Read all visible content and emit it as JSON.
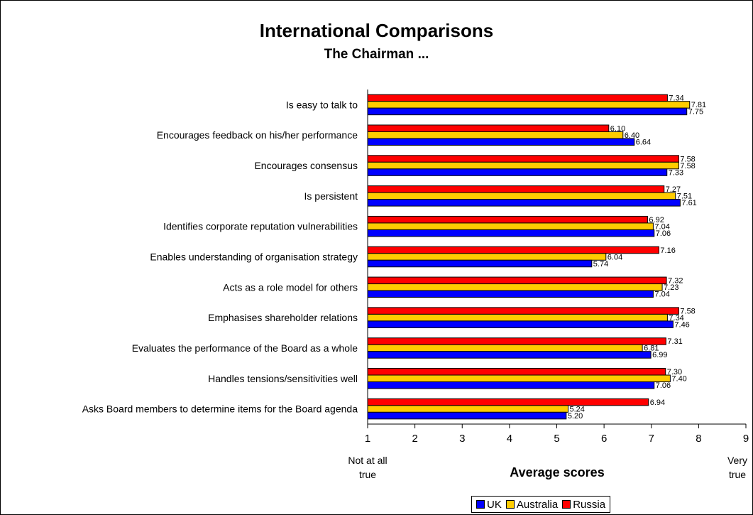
{
  "chart_data": {
    "type": "bar",
    "orientation": "horizontal",
    "title": "International Comparisons",
    "subtitle": "The Chairman ...",
    "xlabel": "Average scores",
    "xlim": [
      1,
      9
    ],
    "xticks": [
      "1",
      "2",
      "3",
      "4",
      "5",
      "6",
      "7",
      "8",
      "9"
    ],
    "low_label": [
      "Not at all",
      "true"
    ],
    "high_label": [
      "Very",
      "true"
    ],
    "legend_position": "bottom",
    "categories": [
      "Is easy to talk to",
      "Encourages feedback on his/her performance",
      "Encourages consensus",
      "Is persistent",
      "Identifies corporate reputation vulnerabilities",
      "Enables understanding of organisation strategy",
      "Acts as a role model for others",
      "Emphasises shareholder relations",
      "Evaluates the performance of the Board as a whole",
      "Handles tensions/sensitivities well",
      "Asks Board members to determine items for the Board agenda"
    ],
    "series": [
      {
        "name": "Russia",
        "color": "#ff0000",
        "values": [
          7.34,
          6.1,
          7.58,
          7.27,
          6.92,
          7.16,
          7.32,
          7.58,
          7.31,
          7.3,
          6.94
        ],
        "labels": [
          "7.34",
          "6.10",
          "7.58",
          "7.27",
          "6.92",
          "7.16",
          "7.32",
          "7.58",
          "7.31",
          "7.30",
          "6.94"
        ]
      },
      {
        "name": "Australia",
        "color": "#ffcc00",
        "values": [
          7.81,
          6.4,
          7.58,
          7.51,
          7.04,
          6.04,
          7.23,
          7.34,
          6.81,
          7.4,
          5.24
        ],
        "labels": [
          "7.81",
          "6.40",
          "7.58",
          "7.51",
          "7.04",
          "6.04",
          "7.23",
          "7.34",
          "6.81",
          "7.40",
          "5.24"
        ]
      },
      {
        "name": "UK",
        "color": "#0000ff",
        "values": [
          7.75,
          6.64,
          7.33,
          7.61,
          7.06,
          5.74,
          7.04,
          7.46,
          6.99,
          7.06,
          5.2
        ],
        "labels": [
          "7.75",
          "6.64",
          "7.33",
          "7.61",
          "7.06",
          "5.74",
          "7.04",
          "7.46",
          "6.99",
          "7.06",
          "5.20"
        ]
      }
    ],
    "legend_order": [
      "UK",
      "Australia",
      "Russia"
    ],
    "grid": false
  }
}
